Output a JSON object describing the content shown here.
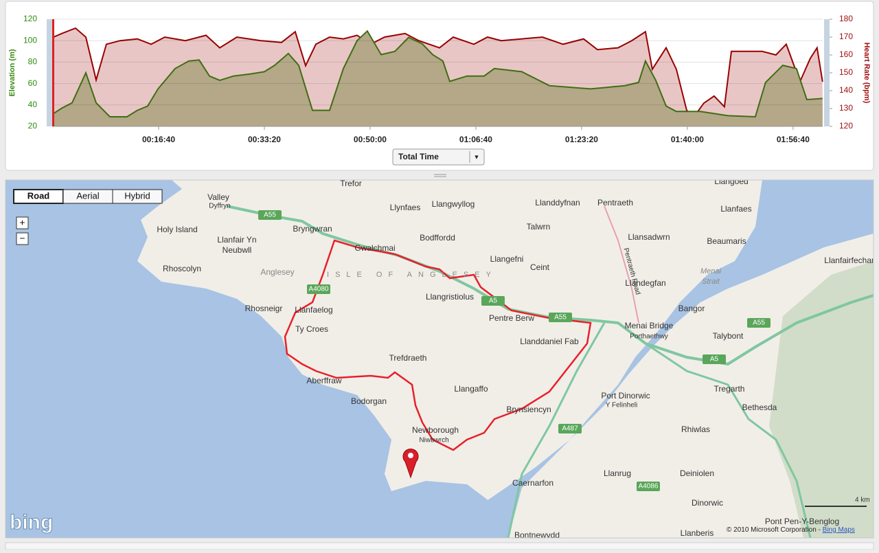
{
  "chart_data": {
    "type": "line",
    "ylabel": "Elevation (m)",
    "y2label": "Heart Rate (bpm)",
    "xlim": [
      0,
      7280
    ],
    "xticks": [
      {
        "value": 1000,
        "label": "00:16:40"
      },
      {
        "value": 2000,
        "label": "00:33:20"
      },
      {
        "value": 3000,
        "label": "00:50:00"
      },
      {
        "value": 4000,
        "label": "01:06:40"
      },
      {
        "value": 5000,
        "label": "01:23:20"
      },
      {
        "value": 6000,
        "label": "01:40:00"
      },
      {
        "value": 7000,
        "label": "01:56:40"
      }
    ],
    "ylim": [
      20,
      120
    ],
    "yticks": [
      20,
      40,
      60,
      80,
      100,
      120
    ],
    "y2lim": [
      120,
      180
    ],
    "y2ticks": [
      120,
      130,
      140,
      150,
      160,
      170,
      180
    ],
    "grid": true,
    "area": true,
    "series": [
      {
        "color": "#990000",
        "fill": "#e9c6c6",
        "axis": "y2",
        "x": [
          6,
          84,
          214,
          312,
          409,
          506,
          636,
          799,
          929,
          1058,
          1253,
          1448,
          1578,
          1740,
          1968,
          2162,
          2292,
          2390,
          2487,
          2617,
          2747,
          2877,
          3006,
          3136,
          3331,
          3461,
          3656,
          3786,
          3981,
          4110,
          4240,
          4435,
          4630,
          4825,
          5019,
          5149,
          5344,
          5474,
          5604,
          5669,
          5799,
          5896,
          5994,
          6058,
          6156,
          6253,
          6351,
          6416,
          6578,
          6708,
          6838,
          6935,
          7065,
          7162,
          7227,
          7279
        ],
        "values": [
          170,
          172,
          175,
          170,
          146,
          166,
          168,
          169,
          166,
          170,
          168,
          171,
          164,
          170,
          168,
          167,
          173,
          154,
          166,
          170,
          169,
          171,
          166,
          170,
          172,
          168,
          164,
          170,
          166,
          170,
          168,
          169,
          170,
          166,
          169,
          163,
          164,
          168,
          173,
          152,
          164,
          152,
          129,
          125,
          133,
          137,
          131,
          162,
          162,
          162,
          160,
          166,
          145,
          158,
          164,
          145
        ]
      },
      {
        "color": "#3f6e12",
        "fill": "#b4a888",
        "x": [
          6,
          84,
          182,
          312,
          409,
          539,
          701,
          799,
          896,
          994,
          1156,
          1286,
          1383,
          1481,
          1578,
          1708,
          1870,
          2000,
          2097,
          2227,
          2325,
          2455,
          2617,
          2747,
          2877,
          2974,
          3104,
          3234,
          3364,
          3494,
          3591,
          3688,
          3753,
          3916,
          4078,
          4175,
          4435,
          4695,
          5084,
          5409,
          5539,
          5604,
          5701,
          5799,
          5896,
          6123,
          6383,
          6643,
          6740,
          6903,
          7032,
          7130,
          7279
        ],
        "values": [
          32,
          37,
          42,
          70,
          42,
          29,
          29,
          35,
          39,
          55,
          74,
          81,
          82,
          67,
          63,
          67,
          69,
          71,
          77,
          88,
          77,
          35,
          35,
          74,
          100,
          109,
          87,
          90,
          103,
          97,
          87,
          81,
          62,
          67,
          67,
          74,
          71,
          58,
          55,
          58,
          61,
          81,
          63,
          39,
          34,
          34,
          30,
          29,
          61,
          77,
          74,
          45,
          46
        ]
      }
    ]
  },
  "toolbar": {
    "x_axis_selector": "Total Time",
    "dropdown_arrow": "▼"
  },
  "map": {
    "buttons": [
      "Road",
      "Aerial",
      "Hybrid"
    ],
    "zoom": [
      "+",
      "−"
    ],
    "roads": [
      "A55",
      "A4080",
      "A5",
      "A55",
      "A55",
      "A5",
      "A487",
      "A4086"
    ],
    "places": [
      "Valley",
      "Dyffryn",
      "Trefor",
      "Llynfaes",
      "Llangwyllog",
      "Llanddyfnan",
      "Pentraeth",
      "Llangoed",
      "Llanfaes",
      "Holy Island",
      "Bryngwran",
      "Bodffordd",
      "Talwrn",
      "Llansadwrn",
      "Beaumaris",
      "Llanfair Yn",
      "Neubwll",
      "Gwalchmai",
      "Llangefni",
      "Rhoscolyn",
      "Anglesey",
      "ISLE OF ANGLESEY",
      "Ceint",
      "Llanfairfechan",
      "Menai",
      "Strait",
      "Llandegfan",
      "Llangristiolus",
      "Rhosneigr",
      "Llanfaelog",
      "Bangor",
      "Pentre Berw",
      "Menai Bridge",
      "Porthaethwy",
      "Ty Croes",
      "Talybont",
      "Llanddaniel Fab",
      "Trefdraeth",
      "Aberffraw",
      "Llangaffo",
      "Tregarth",
      "Port Dinorwic",
      "Y Felinheli",
      "Bodorgan",
      "Bethesda",
      "Brynsiencyn",
      "Newborough",
      "Niwbwrch",
      "Rhiwlas",
      "Llanrug",
      "Deiniolen",
      "Caernarfon",
      "Dinorwic",
      "Pont Pen-Y-Benglog",
      "Llanberis",
      "Bontnewydd",
      "Pentraeth Road"
    ],
    "scale": "4 km",
    "brand": "bing",
    "copyright": "© 2010 Microsoft Corporation - ",
    "copyright_link": "Bing Maps"
  }
}
